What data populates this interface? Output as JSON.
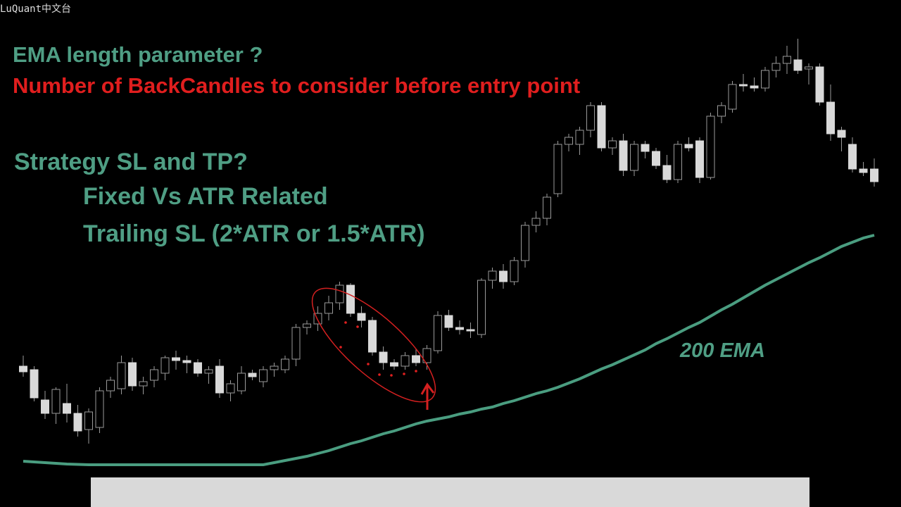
{
  "texts": {
    "watermark": "LuQuant中文台",
    "line1": "EMA length parameter ?",
    "line2": "Number of BackCandles to consider before entry point",
    "line3": "Strategy SL and TP?",
    "line4": "Fixed Vs ATR Related",
    "line5": "Trailing SL (2*ATR or 1.5*ATR)"
  },
  "chart_data": {
    "type": "candlestick",
    "ylim": [
      0,
      720
    ],
    "up_color": "#000000",
    "down_color": "#d9d9d9",
    "open": [
      200,
      195,
      152,
      133,
      147,
      133,
      110,
      113,
      165,
      168,
      205,
      172,
      180,
      190,
      212,
      208,
      205,
      190,
      200,
      162,
      165,
      190,
      178,
      195,
      195,
      210,
      255,
      260,
      275,
      290,
      315,
      275,
      265,
      220,
      205,
      200,
      215,
      205,
      222,
      272,
      255,
      252,
      245,
      322,
      335,
      320,
      350,
      400,
      410,
      445,
      515,
      515,
      535,
      570,
      510,
      520,
      478,
      515,
      505,
      485,
      465,
      515,
      520,
      468,
      555,
      565,
      600,
      598,
      595,
      620,
      630,
      635,
      622,
      625,
      575,
      535,
      515,
      480,
      480
    ],
    "high": [
      215,
      200,
      165,
      170,
      175,
      145,
      140,
      170,
      185,
      215,
      212,
      185,
      200,
      215,
      222,
      215,
      210,
      200,
      210,
      180,
      200,
      195,
      200,
      205,
      215,
      260,
      265,
      285,
      300,
      320,
      318,
      285,
      270,
      228,
      210,
      220,
      225,
      230,
      278,
      280,
      265,
      262,
      325,
      340,
      345,
      355,
      405,
      420,
      445,
      520,
      530,
      540,
      575,
      575,
      525,
      530,
      520,
      520,
      510,
      500,
      520,
      525,
      525,
      560,
      575,
      605,
      615,
      610,
      625,
      640,
      655,
      665,
      630,
      630,
      600,
      540,
      525,
      490,
      495
    ],
    "low": [
      185,
      150,
      125,
      118,
      120,
      100,
      90,
      105,
      155,
      160,
      165,
      160,
      170,
      180,
      195,
      190,
      185,
      175,
      155,
      150,
      160,
      180,
      170,
      185,
      190,
      200,
      245,
      250,
      265,
      280,
      270,
      255,
      215,
      195,
      195,
      195,
      200,
      195,
      218,
      250,
      245,
      240,
      240,
      310,
      310,
      315,
      340,
      390,
      400,
      440,
      505,
      500,
      525,
      505,
      500,
      470,
      470,
      495,
      480,
      460,
      460,
      505,
      460,
      465,
      545,
      560,
      590,
      590,
      590,
      610,
      615,
      615,
      600,
      570,
      520,
      505,
      475,
      470,
      455
    ],
    "close": [
      192,
      155,
      133,
      167,
      133,
      108,
      135,
      165,
      180,
      205,
      172,
      178,
      195,
      212,
      208,
      205,
      190,
      195,
      162,
      175,
      190,
      185,
      195,
      200,
      210,
      255,
      260,
      275,
      290,
      315,
      275,
      265,
      220,
      205,
      200,
      215,
      205,
      225,
      272,
      255,
      252,
      250,
      322,
      335,
      320,
      350,
      400,
      410,
      440,
      515,
      525,
      535,
      570,
      510,
      520,
      478,
      515,
      505,
      485,
      465,
      515,
      510,
      468,
      555,
      570,
      600,
      598,
      595,
      620,
      630,
      640,
      620,
      625,
      575,
      530,
      525,
      480,
      475,
      462
    ],
    "series": [
      {
        "name": "200 EMA",
        "color": "#4a9d80",
        "values": [
          65,
          64,
          63,
          62,
          61,
          60.5,
          60,
          60,
          60,
          60,
          60,
          60,
          60,
          60,
          60,
          60,
          60,
          60,
          60,
          60,
          60,
          60,
          60,
          63,
          66,
          69,
          72,
          76,
          80,
          85,
          90,
          94,
          99,
          104,
          108,
          113,
          118,
          122,
          125,
          128,
          132,
          135,
          139,
          142,
          147,
          151,
          156,
          161,
          165,
          170,
          176,
          182,
          189,
          196,
          202,
          209,
          216,
          223,
          232,
          239,
          247,
          255,
          262,
          271,
          280,
          288,
          297,
          306,
          315,
          323,
          331,
          339,
          347,
          354,
          362,
          370,
          376,
          382,
          386
        ]
      }
    ]
  }
}
